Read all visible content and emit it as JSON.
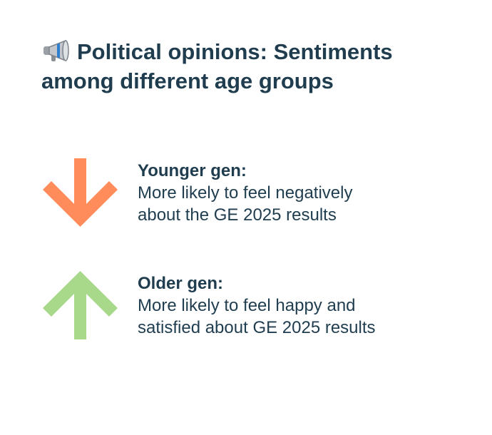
{
  "title": {
    "icon": "megaphone-icon",
    "line1": "Political opinions: Sentiments",
    "line2": "among different age groups"
  },
  "groups": [
    {
      "heading": "Younger gen:",
      "line1": "More likely to feel negatively",
      "line2": "about the GE 2025 results",
      "arrow_icon": "arrow-down-icon",
      "arrow_color": "#ff8c5a"
    },
    {
      "heading": "Older gen:",
      "line1": "More likely to feel happy and",
      "line2": "satisfied about GE 2025 results",
      "arrow_icon": "arrow-up-icon",
      "arrow_color": "#a8d98a"
    }
  ]
}
